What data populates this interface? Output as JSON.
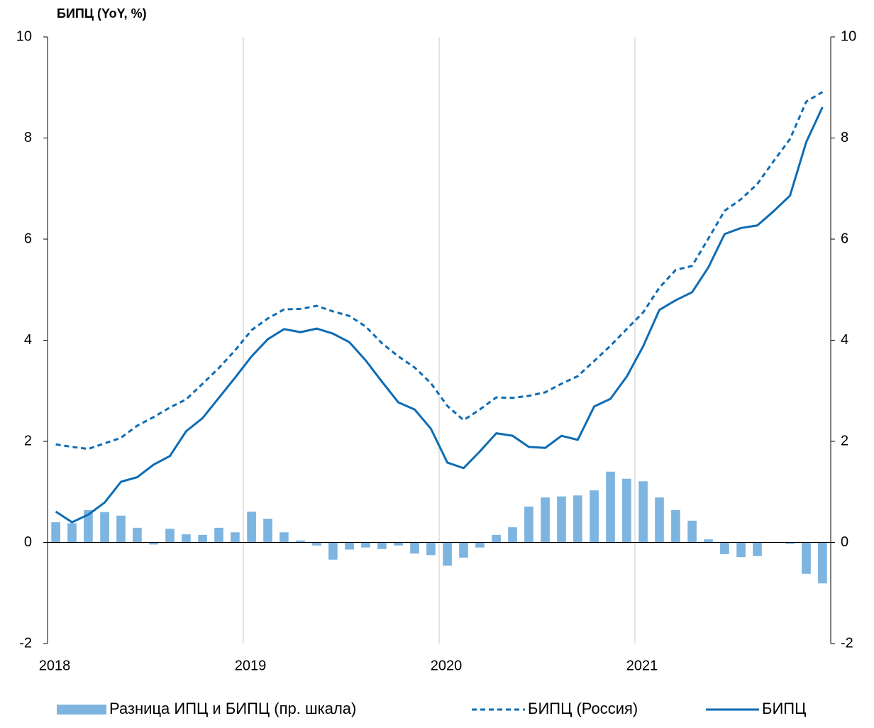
{
  "chart_data": {
    "type": "combo",
    "title": "БИПЦ (YoY, %)",
    "x": [
      2018.042,
      2018.125,
      2018.208,
      2018.292,
      2018.375,
      2018.458,
      2018.542,
      2018.625,
      2018.708,
      2018.792,
      2018.875,
      2018.958,
      2019.042,
      2019.125,
      2019.208,
      2019.292,
      2019.375,
      2019.458,
      2019.542,
      2019.625,
      2019.708,
      2019.792,
      2019.875,
      2019.958,
      2020.042,
      2020.125,
      2020.208,
      2020.292,
      2020.375,
      2020.458,
      2020.542,
      2020.625,
      2020.708,
      2020.792,
      2020.875,
      2020.958,
      2021.042,
      2021.125,
      2021.208,
      2021.292,
      2021.375,
      2021.458,
      2021.542,
      2021.625,
      2021.708,
      2021.792,
      2021.875,
      2021.958
    ],
    "xlim": [
      2018,
      2022
    ],
    "xticks": [
      2018,
      2019,
      2020,
      2021
    ],
    "ylim": [
      -2,
      10
    ],
    "yticks": [
      -2,
      0,
      2,
      4,
      6,
      8,
      10
    ],
    "y2lim": [
      -2,
      10
    ],
    "y2ticks": [
      -2,
      0,
      2,
      4,
      6,
      8,
      10
    ],
    "grid": "x",
    "legend": "bottom",
    "series": [
      {
        "name": "Разница ИПЦ и БИПЦ (пр. шкала)",
        "type": "bar",
        "axis": "y2",
        "color": "#7db4e0",
        "values": [
          0.4,
          0.38,
          0.64,
          0.6,
          0.53,
          0.29,
          -0.04,
          0.27,
          0.16,
          0.15,
          0.29,
          0.2,
          0.61,
          0.47,
          0.2,
          0.04,
          -0.06,
          -0.34,
          -0.14,
          -0.1,
          -0.13,
          -0.06,
          -0.22,
          -0.25,
          -0.46,
          -0.3,
          -0.1,
          0.15,
          0.3,
          0.71,
          0.89,
          0.91,
          0.93,
          1.03,
          1.4,
          1.26,
          1.21,
          0.89,
          0.64,
          0.43,
          0.06,
          -0.23,
          -0.29,
          -0.27,
          -0.01,
          -0.03,
          -0.62,
          -0.81
        ]
      },
      {
        "name": "БИПЦ (Россия)",
        "type": "line",
        "line_style": "dashed",
        "color": "#0e6cb4",
        "values": [
          1.94,
          1.89,
          1.85,
          1.96,
          2.07,
          2.31,
          2.48,
          2.67,
          2.83,
          3.14,
          3.45,
          3.8,
          4.2,
          4.43,
          4.61,
          4.62,
          4.68,
          4.57,
          4.48,
          4.27,
          3.94,
          3.68,
          3.46,
          3.15,
          2.7,
          2.42,
          2.63,
          2.87,
          2.86,
          2.9,
          2.97,
          3.14,
          3.29,
          3.59,
          3.89,
          4.22,
          4.55,
          5.04,
          5.39,
          5.47,
          6.01,
          6.56,
          6.79,
          7.09,
          7.54,
          7.98,
          8.72,
          8.91
        ]
      },
      {
        "name": "БИПЦ",
        "type": "line",
        "line_style": "solid",
        "color": "#0e6cb4",
        "values": [
          0.61,
          0.4,
          0.55,
          0.79,
          1.2,
          1.29,
          1.54,
          1.71,
          2.2,
          2.46,
          2.86,
          3.26,
          3.68,
          4.02,
          4.22,
          4.16,
          4.23,
          4.13,
          3.96,
          3.6,
          3.18,
          2.77,
          2.63,
          2.25,
          1.58,
          1.47,
          1.8,
          2.16,
          2.11,
          1.89,
          1.87,
          2.11,
          2.03,
          2.69,
          2.84,
          3.28,
          3.88,
          4.6,
          4.79,
          4.95,
          5.44,
          6.1,
          6.22,
          6.27,
          6.55,
          6.86,
          7.92,
          8.61
        ]
      }
    ]
  }
}
